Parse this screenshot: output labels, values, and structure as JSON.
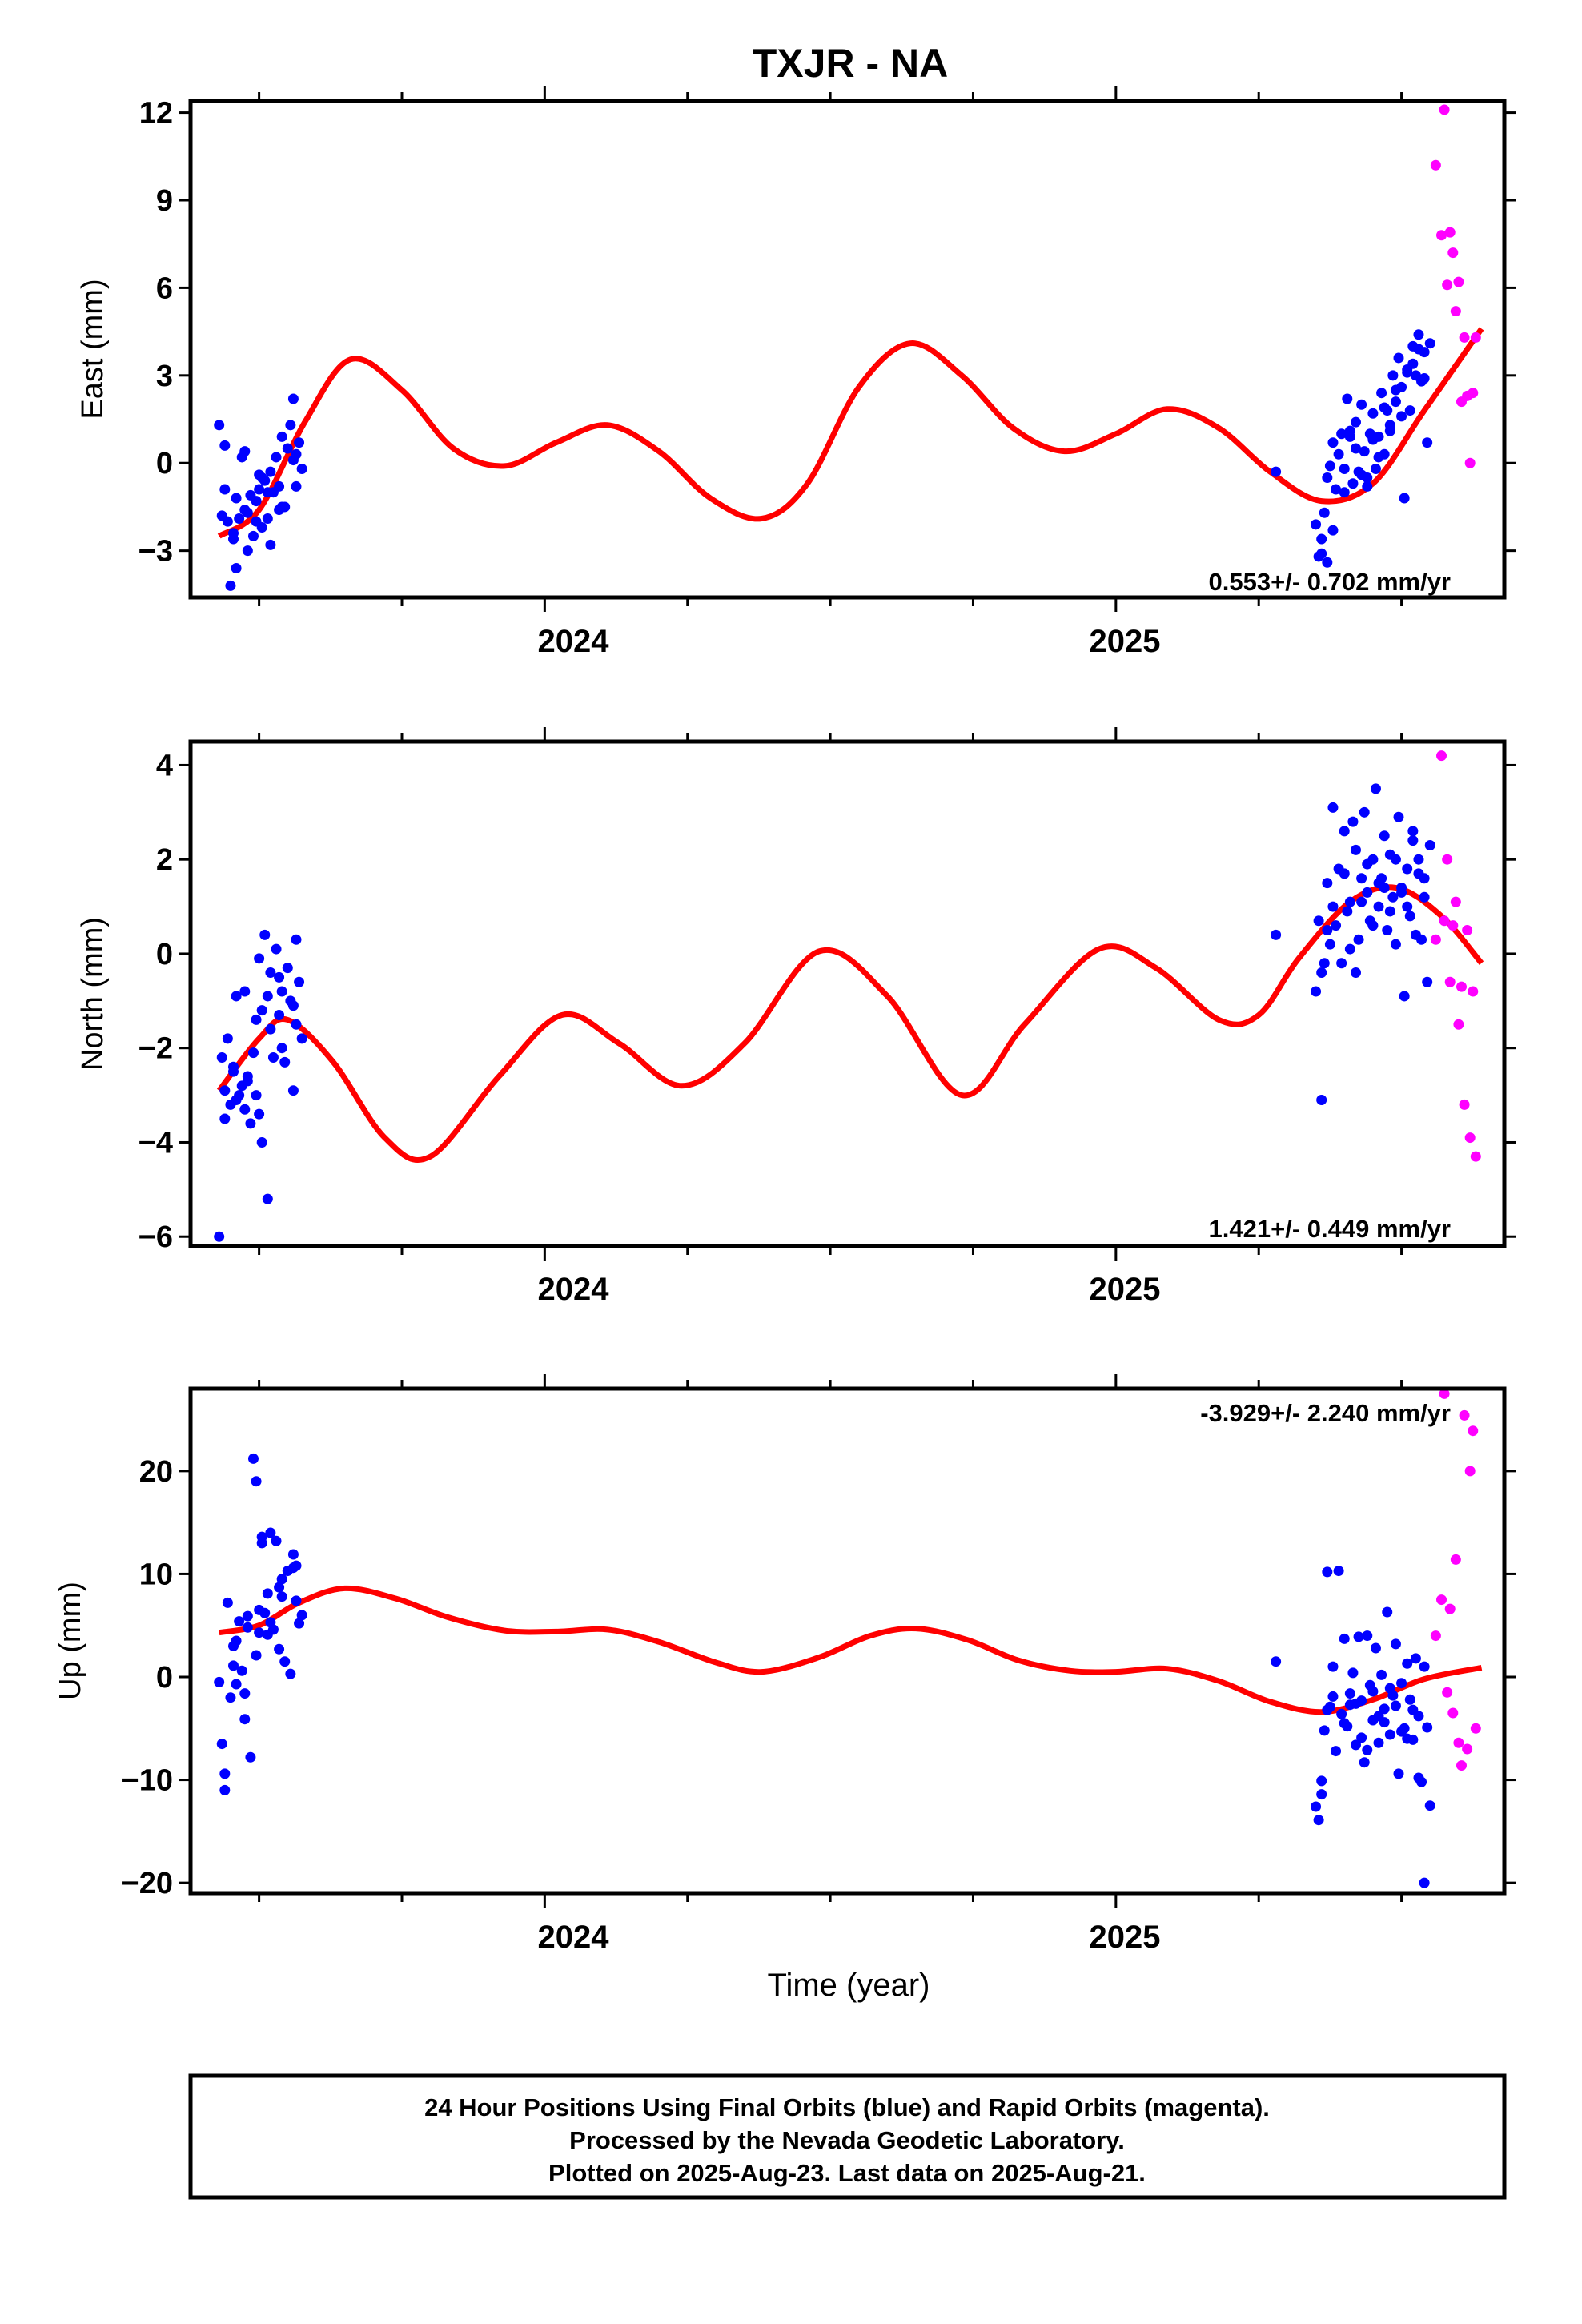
{
  "chart_data": {
    "type": "scatter",
    "title": "TXJR - NA",
    "xlabel": "Time (year)",
    "xlim": [
      2023.38,
      2025.68
    ],
    "xticks": [
      2024,
      2025
    ],
    "tick_labels": [
      "2024",
      "2025"
    ],
    "grid": false,
    "colors": {
      "final": "#0000ff",
      "rapid": "#ff00ff",
      "model": "#ff0000",
      "frame": "#000000"
    },
    "panels": [
      {
        "name": "east",
        "ylabel": "East (mm)",
        "ylim": [
          -4.6,
          12.4
        ],
        "yticks": [
          -3,
          0,
          3,
          6,
          9,
          12
        ],
        "ytick_labels": [
          "−3",
          "0",
          "3",
          "6",
          "9",
          "12"
        ],
        "rate_text": "0.553+/- 0.702 mm/yr",
        "rate_position": "bottom-right",
        "model": {
          "x": [
            2023.43,
            2023.5,
            2023.58,
            2023.66,
            2023.75,
            2023.84,
            2023.93,
            2024.02,
            2024.11,
            2024.2,
            2024.29,
            2024.38,
            2024.46,
            2024.55,
            2024.64,
            2024.73,
            2024.82,
            2024.91,
            2025.0,
            2025.09,
            2025.18,
            2025.27,
            2025.36,
            2025.45,
            2025.54,
            2025.64
          ],
          "y": [
            -2.5,
            -1.6,
            1.4,
            3.55,
            2.5,
            0.5,
            -0.1,
            0.7,
            1.3,
            0.4,
            -1.2,
            -1.9,
            -0.7,
            2.6,
            4.1,
            3.0,
            1.2,
            0.4,
            1.0,
            1.85,
            1.2,
            -0.3,
            -1.3,
            -0.7,
            1.8,
            4.6
          ]
        },
        "final_orbits": {
          "x": [
            2023.43,
            2023.435,
            2023.44,
            2023.445,
            2023.45,
            2023.455,
            2023.46,
            2023.465,
            2023.47,
            2023.475,
            2023.48,
            2023.485,
            2023.49,
            2023.495,
            2023.5,
            2023.505,
            2023.51,
            2023.515,
            2023.52,
            2023.525,
            2023.53,
            2023.535,
            2023.54,
            2023.545,
            2023.55,
            2023.555,
            2023.56,
            2023.565,
            2023.57,
            2023.575,
            2023.44,
            2023.46,
            2023.48,
            2023.5,
            2023.52,
            2023.54,
            2023.56,
            2023.475,
            2023.495,
            2023.515,
            2023.535,
            2023.455,
            2023.505,
            2023.565,
            2025.28,
            2025.35,
            2025.355,
            2025.36,
            2025.365,
            2025.37,
            2025.375,
            2025.38,
            2025.385,
            2025.39,
            2025.395,
            2025.4,
            2025.405,
            2025.41,
            2025.415,
            2025.42,
            2025.425,
            2025.43,
            2025.435,
            2025.44,
            2025.445,
            2025.45,
            2025.455,
            2025.46,
            2025.465,
            2025.47,
            2025.475,
            2025.48,
            2025.485,
            2025.49,
            2025.495,
            2025.5,
            2025.505,
            2025.51,
            2025.515,
            2025.52,
            2025.525,
            2025.53,
            2025.535,
            2025.54,
            2025.545,
            2025.55,
            2025.36,
            2025.37,
            2025.38,
            2025.4,
            2025.42,
            2025.44,
            2025.46,
            2025.48,
            2025.5,
            2025.52,
            2025.54,
            2025.41,
            2025.43,
            2025.45,
            2025.47,
            2025.49,
            2025.51,
            2025.53
          ],
          "y": [
            1.3,
            -1.8,
            -0.9,
            -2.0,
            -4.2,
            -2.6,
            -1.2,
            -1.9,
            0.2,
            -1.6,
            -3.0,
            -1.1,
            -2.5,
            -1.3,
            -0.4,
            -2.2,
            -0.6,
            -1.9,
            -0.3,
            -1.0,
            0.2,
            -0.8,
            0.9,
            -1.5,
            0.5,
            1.3,
            2.2,
            -0.8,
            0.7,
            -0.2,
            0.6,
            -3.6,
            -1.7,
            -0.9,
            -2.8,
            -1.5,
            0.1,
            0.4,
            -2.0,
            -1.0,
            -1.6,
            -2.4,
            -0.5,
            0.3,
            -0.3,
            -2.1,
            -3.2,
            -2.6,
            -1.7,
            -0.5,
            -0.1,
            0.7,
            -0.9,
            0.3,
            1.0,
            -0.2,
            2.2,
            0.9,
            -0.7,
            1.4,
            -0.3,
            2.0,
            0.4,
            -0.5,
            1.0,
            1.7,
            -0.2,
            0.9,
            2.4,
            0.3,
            1.8,
            1.1,
            3.0,
            2.1,
            3.6,
            2.6,
            -1.2,
            3.2,
            1.8,
            4.0,
            3.0,
            4.4,
            2.8,
            3.8,
            0.7,
            4.1,
            -3.1,
            -3.4,
            -2.3,
            -1.0,
            0.5,
            -0.8,
            0.2,
            1.3,
            1.6,
            3.4,
            2.9,
            1.1,
            -0.4,
            0.8,
            1.9,
            2.5,
            3.1,
            3.9
          ]
        },
        "rapid_orbits": {
          "x": [
            2025.56,
            2025.57,
            2025.575,
            2025.58,
            2025.585,
            2025.59,
            2025.595,
            2025.6,
            2025.605,
            2025.61,
            2025.615,
            2025.62,
            2025.625,
            2025.63
          ],
          "y": [
            10.2,
            7.8,
            12.1,
            6.1,
            7.9,
            7.2,
            5.2,
            6.2,
            2.1,
            4.3,
            2.3,
            0.0,
            2.4,
            4.3
          ]
        }
      },
      {
        "name": "north",
        "ylabel": "North (mm)",
        "ylim": [
          -6.2,
          4.5
        ],
        "yticks": [
          -6,
          -4,
          -2,
          0,
          2,
          4
        ],
        "ytick_labels": [
          "−6",
          "−4",
          "−2",
          "0",
          "2",
          "4"
        ],
        "rate_text": "1.421+/- 0.449 mm/yr",
        "rate_position": "bottom-right",
        "model": {
          "x": [
            2023.43,
            2023.5,
            2023.55,
            2023.63,
            2023.72,
            2023.8,
            2023.92,
            2024.03,
            2024.13,
            2024.24,
            2024.35,
            2024.48,
            2024.6,
            2024.73,
            2024.84,
            2024.97,
            2025.07,
            2025.18,
            2025.25,
            2025.32,
            2025.41,
            2025.49,
            2025.57,
            2025.64
          ],
          "y": [
            -2.9,
            -1.8,
            -1.4,
            -2.3,
            -3.9,
            -4.3,
            -2.6,
            -1.3,
            -1.9,
            -2.8,
            -1.9,
            0.05,
            -0.9,
            -3.0,
            -1.5,
            0.1,
            -0.3,
            -1.4,
            -1.3,
            -0.1,
            1.1,
            1.4,
            0.8,
            -0.2
          ]
        },
        "final_orbits": {
          "x": [
            2023.43,
            2023.435,
            2023.44,
            2023.445,
            2023.45,
            2023.455,
            2023.46,
            2023.465,
            2023.47,
            2023.475,
            2023.48,
            2023.485,
            2023.49,
            2023.495,
            2023.5,
            2023.505,
            2023.51,
            2023.515,
            2023.52,
            2023.525,
            2023.53,
            2023.535,
            2023.54,
            2023.545,
            2023.55,
            2023.555,
            2023.56,
            2023.565,
            2023.57,
            2023.575,
            2023.44,
            2023.46,
            2023.48,
            2023.5,
            2023.52,
            2023.54,
            2023.56,
            2023.475,
            2023.495,
            2023.515,
            2023.535,
            2023.455,
            2023.505,
            2023.565,
            2025.28,
            2025.35,
            2025.355,
            2025.36,
            2025.365,
            2025.37,
            2025.375,
            2025.38,
            2025.385,
            2025.39,
            2025.395,
            2025.4,
            2025.405,
            2025.41,
            2025.415,
            2025.42,
            2025.425,
            2025.43,
            2025.435,
            2025.44,
            2025.445,
            2025.45,
            2025.455,
            2025.46,
            2025.465,
            2025.47,
            2025.475,
            2025.48,
            2025.485,
            2025.49,
            2025.495,
            2025.5,
            2025.505,
            2025.51,
            2025.515,
            2025.52,
            2025.525,
            2025.53,
            2025.535,
            2025.54,
            2025.545,
            2025.55,
            2025.36,
            2025.37,
            2025.38,
            2025.4,
            2025.42,
            2025.44,
            2025.46,
            2025.48,
            2025.5,
            2025.52,
            2025.54,
            2025.41,
            2025.43,
            2025.45,
            2025.47,
            2025.49,
            2025.51,
            2025.53
          ],
          "y": [
            -6.0,
            -2.2,
            -3.5,
            -1.8,
            -3.2,
            -2.5,
            -0.9,
            -3.0,
            -2.8,
            -3.3,
            -2.6,
            -3.6,
            -2.1,
            -3.0,
            -0.1,
            -4.0,
            0.4,
            -5.2,
            -1.6,
            -2.2,
            0.1,
            -1.3,
            -0.8,
            -2.3,
            -0.3,
            -1.0,
            -2.9,
            -1.5,
            -0.6,
            -1.8,
            -2.9,
            -3.1,
            -2.7,
            -3.4,
            -0.4,
            -2.0,
            -1.1,
            -0.8,
            -1.4,
            -0.9,
            -0.5,
            -2.4,
            -1.2,
            0.3,
            0.4,
            -0.8,
            0.7,
            -3.1,
            -0.2,
            1.5,
            0.2,
            3.1,
            0.6,
            1.8,
            -0.2,
            2.6,
            0.9,
            1.1,
            2.8,
            -0.4,
            0.3,
            1.6,
            3.0,
            1.3,
            0.7,
            2.0,
            3.5,
            1.0,
            1.6,
            2.5,
            0.5,
            2.1,
            1.2,
            0.2,
            2.9,
            1.4,
            -0.9,
            1.8,
            0.8,
            2.6,
            0.4,
            2.0,
            0.3,
            1.2,
            -0.6,
            2.3,
            -0.4,
            0.5,
            1.0,
            1.7,
            2.2,
            1.9,
            1.5,
            0.9,
            1.3,
            2.4,
            1.6,
            0.1,
            1.1,
            0.6,
            1.4,
            2.0,
            1.0,
            1.7
          ]
        },
        "rapid_orbits": {
          "x": [
            2025.56,
            2025.57,
            2025.575,
            2025.58,
            2025.585,
            2025.59,
            2025.595,
            2025.6,
            2025.605,
            2025.61,
            2025.615,
            2025.62,
            2025.625,
            2025.63
          ],
          "y": [
            0.3,
            4.2,
            0.7,
            2.0,
            -0.6,
            0.6,
            1.1,
            -1.5,
            -0.7,
            -3.2,
            0.5,
            -3.9,
            -0.8,
            -4.3
          ]
        }
      },
      {
        "name": "up",
        "ylabel": "Up (mm)",
        "ylim": [
          -21,
          28
        ],
        "yticks": [
          -20,
          -10,
          0,
          10,
          20
        ],
        "ytick_labels": [
          "−20",
          "−10",
          "0",
          "10",
          "20"
        ],
        "rate_text": "-3.929+/- 2.240 mm/yr",
        "rate_position": "top-right",
        "model": {
          "x": [
            2023.43,
            2023.5,
            2023.57,
            2023.65,
            2023.74,
            2023.83,
            2023.93,
            2024.02,
            2024.11,
            2024.2,
            2024.3,
            2024.38,
            2024.48,
            2024.57,
            2024.65,
            2024.74,
            2024.83,
            2024.92,
            2025.0,
            2025.09,
            2025.18,
            2025.27,
            2025.36,
            2025.45,
            2025.54,
            2025.64
          ],
          "y": [
            4.3,
            5.0,
            7.2,
            8.6,
            7.6,
            5.8,
            4.5,
            4.4,
            4.6,
            3.4,
            1.4,
            0.5,
            1.9,
            4.0,
            4.7,
            3.6,
            1.6,
            0.6,
            0.5,
            0.8,
            -0.4,
            -2.4,
            -3.4,
            -2.2,
            -0.2,
            0.9
          ]
        },
        "final_orbits": {
          "x": [
            2023.43,
            2023.435,
            2023.44,
            2023.445,
            2023.45,
            2023.455,
            2023.46,
            2023.465,
            2023.47,
            2023.475,
            2023.48,
            2023.485,
            2023.49,
            2023.495,
            2023.5,
            2023.505,
            2023.51,
            2023.515,
            2023.52,
            2023.525,
            2023.53,
            2023.535,
            2023.54,
            2023.545,
            2023.55,
            2023.555,
            2023.56,
            2023.565,
            2023.57,
            2023.575,
            2023.44,
            2023.46,
            2023.48,
            2023.5,
            2023.52,
            2023.54,
            2023.56,
            2023.475,
            2023.495,
            2023.515,
            2023.535,
            2023.455,
            2023.505,
            2023.565,
            2025.28,
            2025.35,
            2025.355,
            2025.36,
            2025.365,
            2025.37,
            2025.375,
            2025.38,
            2025.385,
            2025.39,
            2025.395,
            2025.4,
            2025.405,
            2025.41,
            2025.415,
            2025.42,
            2025.425,
            2025.43,
            2025.435,
            2025.44,
            2025.445,
            2025.45,
            2025.455,
            2025.46,
            2025.465,
            2025.47,
            2025.475,
            2025.48,
            2025.485,
            2025.49,
            2025.495,
            2025.5,
            2025.505,
            2025.51,
            2025.515,
            2025.52,
            2025.525,
            2025.53,
            2025.535,
            2025.54,
            2025.545,
            2025.55,
            2025.36,
            2025.37,
            2025.38,
            2025.4,
            2025.42,
            2025.44,
            2025.46,
            2025.48,
            2025.5,
            2025.52,
            2025.54,
            2025.41,
            2025.43,
            2025.45,
            2025.47,
            2025.49,
            2025.51,
            2025.53
          ],
          "y": [
            -0.5,
            -6.5,
            -11.0,
            7.2,
            -2.0,
            3.0,
            -0.7,
            5.4,
            0.6,
            -1.6,
            4.8,
            -7.8,
            21.2,
            19.0,
            4.3,
            13.6,
            6.2,
            8.1,
            14.0,
            4.6,
            13.2,
            2.7,
            9.5,
            1.5,
            10.3,
            0.3,
            11.9,
            7.4,
            5.2,
            6.0,
            -9.4,
            3.5,
            5.9,
            6.5,
            5.3,
            7.8,
            10.6,
            -4.1,
            2.1,
            4.1,
            8.7,
            1.1,
            13.0,
            10.8,
            1.5,
            -12.6,
            -13.9,
            -10.1,
            -5.2,
            10.2,
            -2.9,
            1.0,
            -7.2,
            10.3,
            -3.6,
            3.7,
            -4.8,
            -1.6,
            0.4,
            -6.6,
            3.9,
            -2.3,
            -8.3,
            4.0,
            -0.8,
            -4.2,
            2.8,
            -6.4,
            0.2,
            -3.1,
            6.3,
            -5.6,
            -1.8,
            3.2,
            -9.4,
            -0.6,
            -5.0,
            1.3,
            -2.2,
            -6.1,
            1.8,
            -3.8,
            -10.2,
            -20.0,
            -4.9,
            -12.5,
            -11.4,
            -3.2,
            -1.9,
            -4.5,
            -2.6,
            -7.1,
            -3.8,
            -1.1,
            -5.3,
            -3.2,
            1.0,
            -2.7,
            -5.9,
            -1.4,
            -4.4,
            -2.8,
            -6.0,
            -9.8
          ]
        },
        "rapid_orbits": {
          "x": [
            2025.56,
            2025.57,
            2025.575,
            2025.58,
            2025.585,
            2025.59,
            2025.595,
            2025.6,
            2025.605,
            2025.61,
            2025.615,
            2025.62,
            2025.625,
            2025.63
          ],
          "y": [
            4.0,
            7.5,
            27.5,
            -1.5,
            6.6,
            -3.5,
            11.4,
            -6.4,
            -8.6,
            25.4,
            -7.0,
            20.0,
            23.9,
            -5.0
          ]
        }
      }
    ]
  },
  "footer": {
    "line1": "24 Hour Positions Using Final Orbits (blue) and Rapid Orbits (magenta).",
    "line2": "Processed by the Nevada Geodetic Laboratory.",
    "line3": "Plotted on 2025-Aug-23. Last data on 2025-Aug-21."
  }
}
